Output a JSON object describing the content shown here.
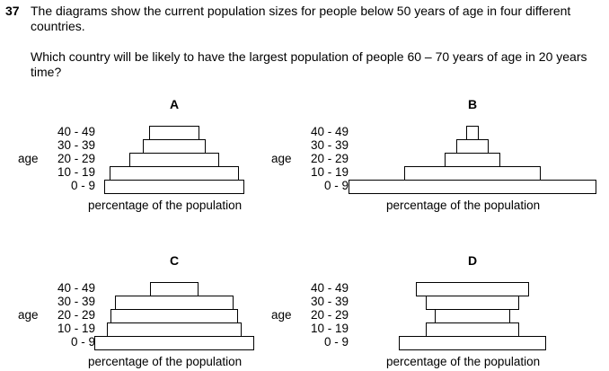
{
  "question": {
    "number": "37",
    "intro": "The diagrams show the current population sizes for people below 50 years of age in four different countries.",
    "prompt": "Which country will be likely to have the largest population of people 60 – 70 years of age in 20 years time?"
  },
  "common": {
    "age_caption": "age",
    "x_label": "percentage of the population",
    "age_groups": [
      "40 - 49",
      "30 - 39",
      "20 - 29",
      "10 - 19",
      "0 - 9"
    ]
  },
  "chart_data": [
    {
      "type": "bar",
      "title": "A",
      "categories": [
        "40 - 49",
        "30 - 39",
        "20 - 29",
        "10 - 19",
        "0 - 9"
      ],
      "values": [
        56,
        70,
        100,
        144,
        156
      ],
      "ylabel": "age",
      "xlabel": "percentage of the population"
    },
    {
      "type": "bar",
      "title": "B",
      "categories": [
        "40 - 49",
        "30 - 39",
        "20 - 29",
        "10 - 19",
        "0 - 9"
      ],
      "values": [
        14,
        36,
        62,
        152,
        276
      ],
      "ylabel": "age",
      "xlabel": "percentage of the population"
    },
    {
      "type": "bar",
      "title": "C",
      "categories": [
        "40 - 49",
        "30 - 39",
        "20 - 29",
        "10 - 19",
        "0 - 9"
      ],
      "values": [
        54,
        132,
        142,
        150,
        178
      ],
      "ylabel": "age",
      "xlabel": "percentage of the population"
    },
    {
      "type": "bar",
      "title": "D",
      "categories": [
        "40 - 49",
        "30 - 39",
        "20 - 29",
        "10 - 19",
        "0 - 9"
      ],
      "values": [
        126,
        104,
        84,
        104,
        164
      ],
      "ylabel": "age",
      "xlabel": "percentage of the population"
    }
  ]
}
